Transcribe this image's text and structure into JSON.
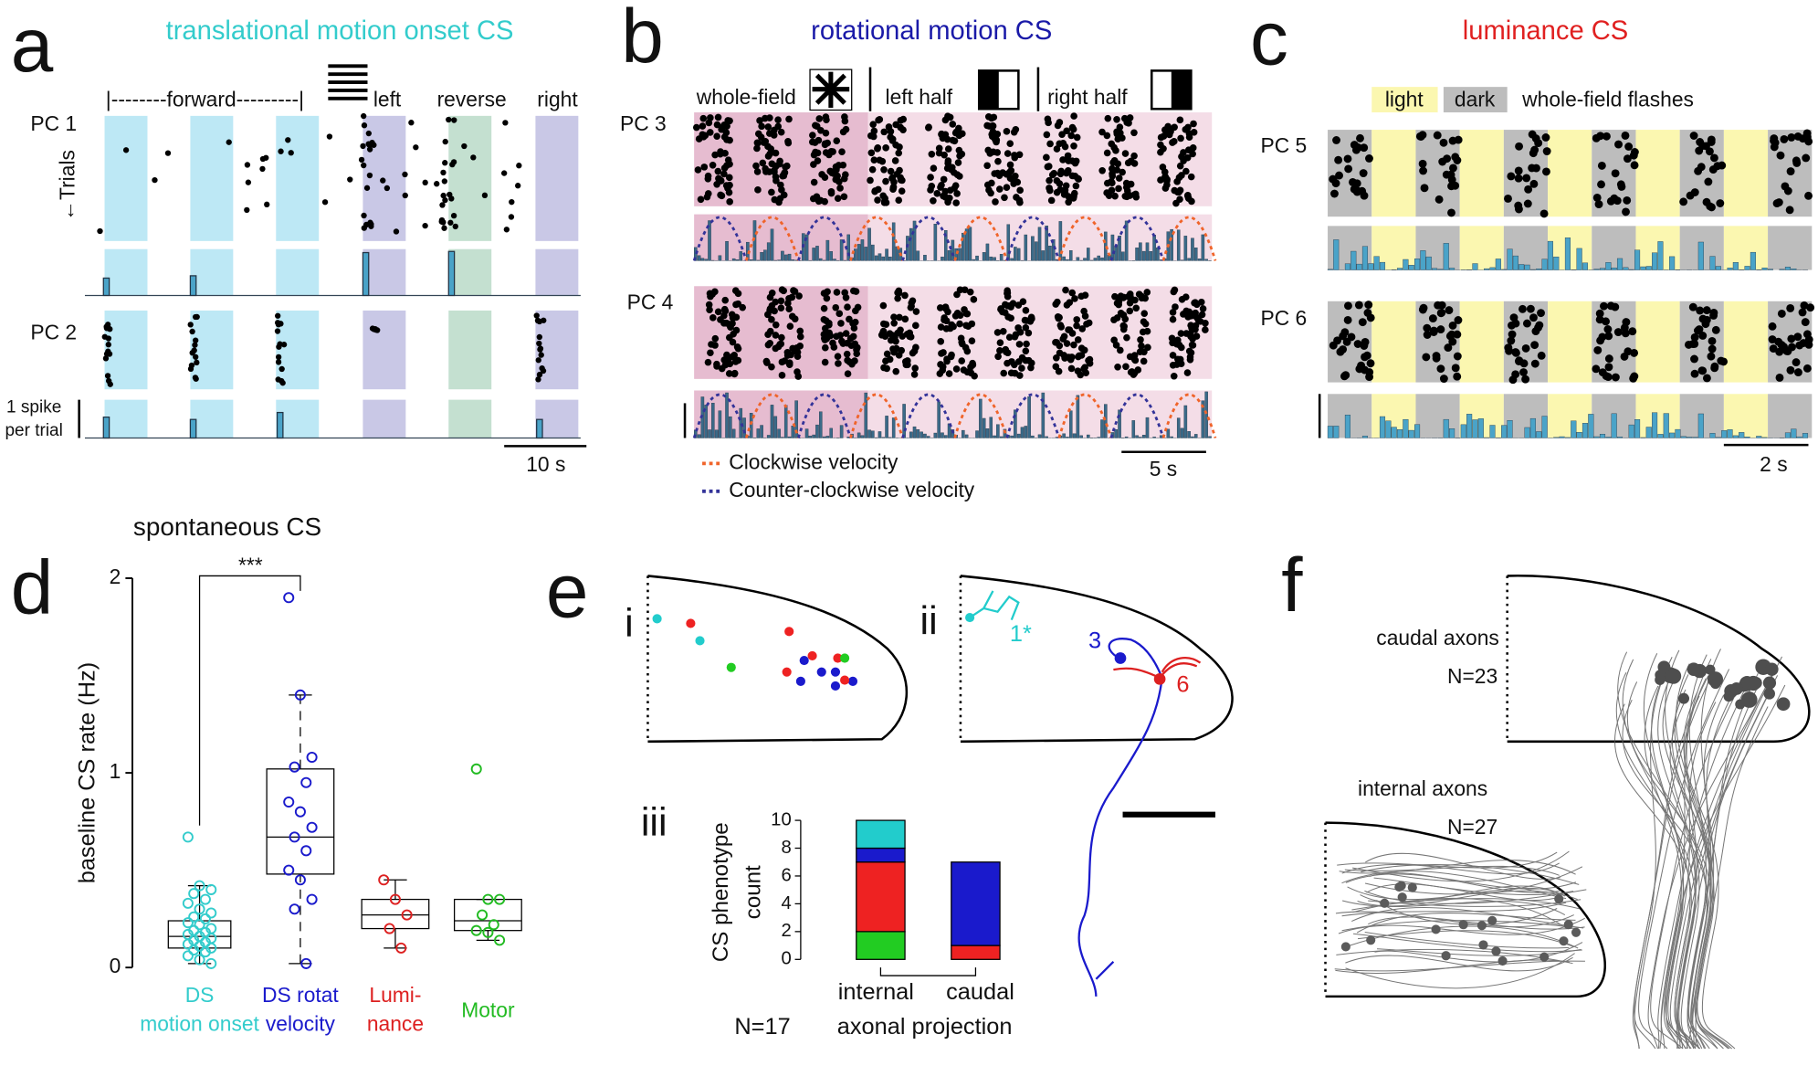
{
  "panel_letters": [
    "a",
    "b",
    "c",
    "d",
    "e",
    "f"
  ],
  "panel_a": {
    "title": "translational motion onset CS",
    "conditions": [
      "|--------forward---------|",
      "left",
      "reverse",
      "right"
    ],
    "cells": [
      "PC 1",
      "PC 2"
    ],
    "ylabel": "←Trials",
    "scale_bar": [
      "1 spike",
      "per trial"
    ],
    "time_bar": "10 s"
  },
  "panel_b": {
    "title": "rotational motion CS",
    "conditions": [
      "whole-field",
      "left half",
      "right half"
    ],
    "cells": [
      "PC 3",
      "PC 4"
    ],
    "legend": [
      "Clockwise velocity",
      "Counter-clockwise velocity"
    ],
    "time_bar": "5 s"
  },
  "panel_c": {
    "title": "luminance CS",
    "legend": [
      "light",
      "dark"
    ],
    "legend_note": "whole-field flashes",
    "cells": [
      "PC 5",
      "PC 6"
    ],
    "time_bar": "2 s"
  },
  "chart_data": [
    {
      "type": "box",
      "title": "spontaneous CS",
      "ylabel": "baseline CS rate (Hz)",
      "categories": [
        [
          "DS",
          "motion onset"
        ],
        [
          "DS rotat",
          "velocity"
        ],
        [
          "Lumi-",
          "nance"
        ],
        [
          "Motor"
        ]
      ],
      "colors": [
        "#33cccc",
        "#1a1acc",
        "#dd2020",
        "#22bb22"
      ],
      "ylim": [
        0,
        2
      ],
      "yticks": [
        0,
        1,
        2
      ],
      "annotation": "***",
      "boxes": [
        {
          "whislo": 0.02,
          "q1": 0.1,
          "med": 0.16,
          "q3": 0.24,
          "whishi": 0.42,
          "points": [
            0.67,
            0.42,
            0.4,
            0.38,
            0.35,
            0.33,
            0.3,
            0.28,
            0.26,
            0.25,
            0.23,
            0.22,
            0.2,
            0.19,
            0.18,
            0.17,
            0.16,
            0.15,
            0.14,
            0.13,
            0.12,
            0.11,
            0.1,
            0.09,
            0.08,
            0.06,
            0.04,
            0.02
          ]
        },
        {
          "whislo": 0.02,
          "q1": 0.48,
          "med": 0.67,
          "q3": 1.02,
          "whishi": 1.4,
          "points": [
            1.9,
            1.4,
            1.08,
            1.03,
            0.95,
            0.85,
            0.8,
            0.72,
            0.67,
            0.6,
            0.5,
            0.45,
            0.35,
            0.3,
            0.02
          ]
        },
        {
          "whislo": 0.1,
          "q1": 0.2,
          "med": 0.27,
          "q3": 0.35,
          "whishi": 0.45,
          "points": [
            0.45,
            0.35,
            0.27,
            0.2,
            0.1
          ]
        },
        {
          "whislo": 0.14,
          "q1": 0.19,
          "med": 0.24,
          "q3": 0.35,
          "whishi": 0.35,
          "points": [
            1.02,
            0.35,
            0.35,
            0.27,
            0.22,
            0.19,
            0.18,
            0.14
          ]
        }
      ]
    },
    {
      "type": "bar",
      "stacked": true,
      "ylabel": [
        "CS phenotype",
        "count"
      ],
      "xlabel": "axonal projection",
      "note": "N=17",
      "categories": [
        "internal",
        "caudal"
      ],
      "ylim": [
        0,
        10
      ],
      "yticks": [
        0,
        2,
        4,
        6,
        8,
        10
      ],
      "series": [
        {
          "color": "#22cc22",
          "values": [
            2,
            0
          ]
        },
        {
          "color": "#ee2222",
          "values": [
            5,
            1
          ]
        },
        {
          "color": "#1a1acc",
          "values": [
            1,
            6
          ]
        },
        {
          "color": "#22cccc",
          "values": [
            2,
            0
          ]
        }
      ]
    }
  ],
  "panel_e": {
    "subpanels": [
      "i",
      "ii",
      "iii"
    ],
    "neuron_labels": [
      "1*",
      "3",
      "6"
    ]
  },
  "panel_f": {
    "groups": [
      {
        "name": "caudal axons",
        "n": "N=23"
      },
      {
        "name": "internal axons",
        "n": "N=27"
      }
    ]
  }
}
